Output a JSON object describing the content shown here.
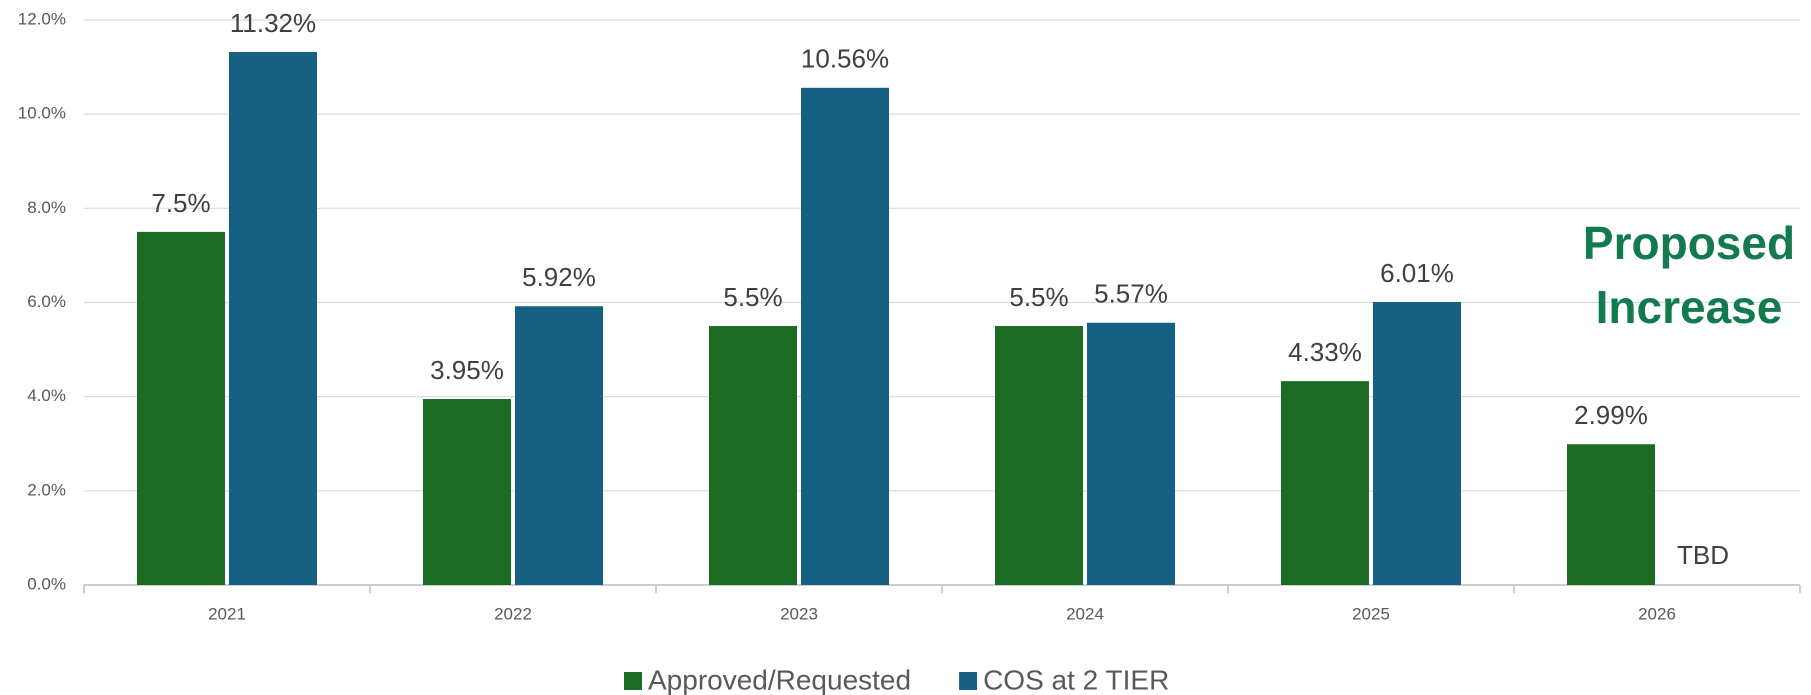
{
  "chart_data": {
    "type": "bar",
    "categories": [
      "2021",
      "2022",
      "2023",
      "2024",
      "2025",
      "2026"
    ],
    "series": [
      {
        "name": "Approved/Requested",
        "color": "#1b6b24",
        "values": [
          7.5,
          3.95,
          5.5,
          5.5,
          4.33,
          2.99
        ],
        "value_labels": [
          "7.5%",
          "3.95%",
          "5.5%",
          "5.5%",
          "4.33%",
          "2.99%"
        ]
      },
      {
        "name": "COS at 2 TIER",
        "color": "#166083",
        "values": [
          11.32,
          5.92,
          10.56,
          5.57,
          6.01,
          null
        ],
        "value_labels": [
          "11.32%",
          "5.92%",
          "10.56%",
          "5.57%",
          "6.01%",
          null
        ]
      }
    ],
    "ylim": [
      0,
      12
    ],
    "yticks": [
      {
        "value": 0,
        "label": "0.0%"
      },
      {
        "value": 2,
        "label": "2.0%"
      },
      {
        "value": 4,
        "label": "4.0%"
      },
      {
        "value": 6,
        "label": "6.0%"
      },
      {
        "value": 8,
        "label": "8.0%"
      },
      {
        "value": 10,
        "label": "10.0%"
      },
      {
        "value": 12,
        "label": "12.0%"
      }
    ],
    "grid": true,
    "legend": "bottom",
    "annotations": {
      "tbd": "TBD",
      "proposed": [
        "Proposed",
        "Increase"
      ],
      "proposed_color": "#137a50"
    }
  }
}
